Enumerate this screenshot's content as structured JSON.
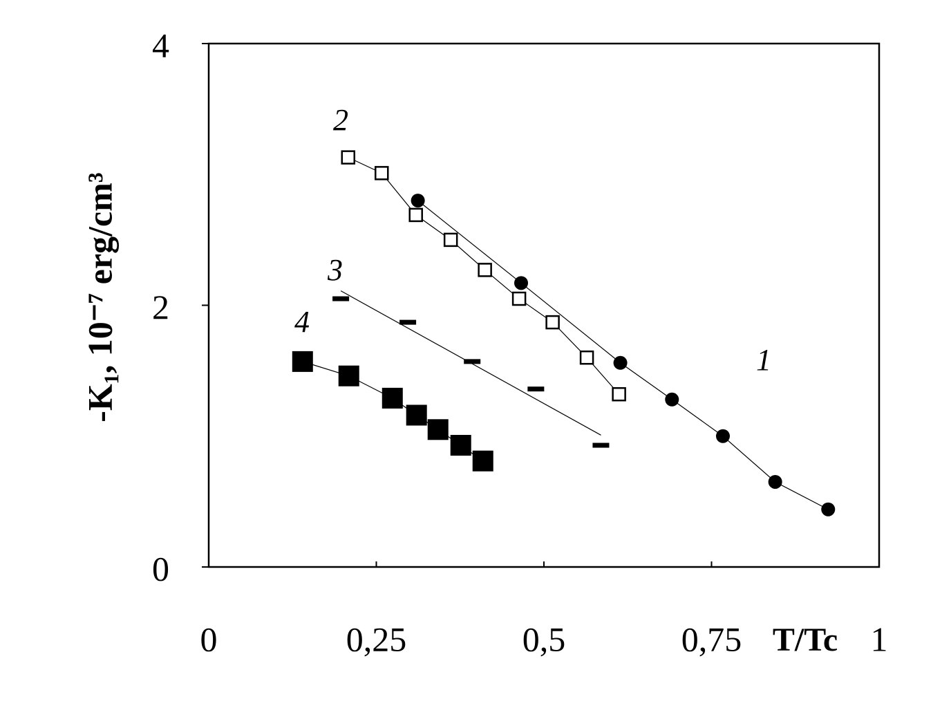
{
  "chart_data": {
    "type": "scatter",
    "y_label": "-K₁, 10⁻⁷ erg/cm³",
    "x_label": "T/Tc",
    "xlim": [
      0,
      1
    ],
    "xticks": [
      0,
      {
        "value": 0.25,
        "label": "0,25"
      },
      {
        "value": 0.5,
        "label": "0,5"
      },
      {
        "value": 0.75,
        "label": "0,75"
      },
      1
    ],
    "ylim": [
      0,
      4
    ],
    "yticks": [
      0,
      2,
      4
    ],
    "series": [
      {
        "name": "1",
        "color": "#000000",
        "marker": "circle",
        "line": "connect",
        "x": [
          0.312,
          0.466,
          0.614,
          0.691,
          0.767,
          0.845,
          0.924
        ],
        "values": [
          2.8,
          2.17,
          1.56,
          1.28,
          1.0,
          0.65,
          0.44
        ]
      },
      {
        "name": "2",
        "color": "#000000",
        "marker": "open-square",
        "line": "connect",
        "x": [
          0.208,
          0.258,
          0.309,
          0.361,
          0.412,
          0.463,
          0.513,
          0.564,
          0.612
        ],
        "values": [
          3.13,
          3.01,
          2.69,
          2.5,
          2.27,
          2.05,
          1.87,
          1.6,
          1.32
        ]
      },
      {
        "name": "3",
        "color": "#000000",
        "marker": "dash",
        "line": "fit",
        "x": [
          0.197,
          0.297,
          0.393,
          0.488,
          0.585
        ],
        "values": [
          2.05,
          1.87,
          1.57,
          1.36,
          0.93
        ]
      },
      {
        "name": "4",
        "color": "#000000",
        "marker": "filled-square",
        "line": "connect",
        "x": [
          0.14,
          0.209,
          0.274,
          0.31,
          0.342,
          0.376,
          0.409
        ],
        "values": [
          1.57,
          1.46,
          1.29,
          1.16,
          1.05,
          0.93,
          0.81
        ]
      }
    ]
  }
}
